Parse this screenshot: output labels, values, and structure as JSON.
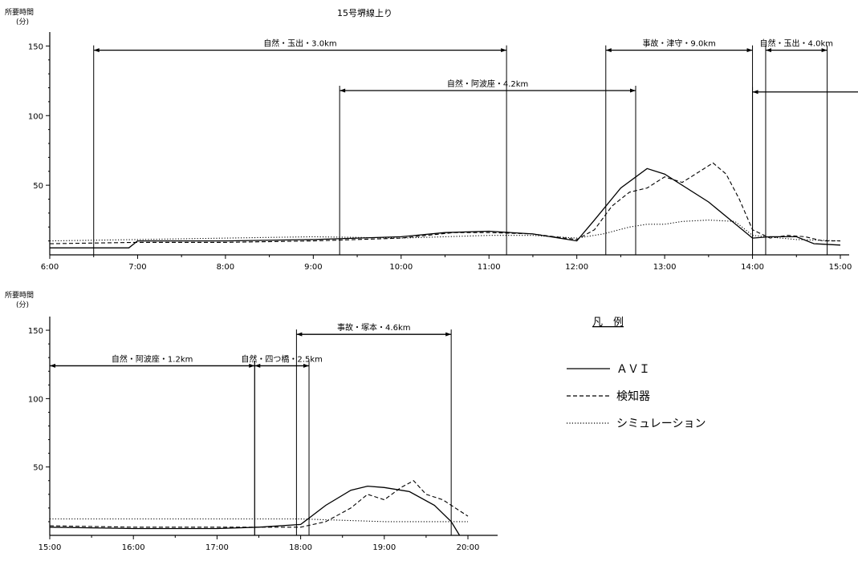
{
  "title": "15号堺線上り",
  "legend": {
    "title": "凡　例",
    "items": [
      {
        "label": "ＡＶＩ",
        "style": "solid"
      },
      {
        "label": "検知器",
        "style": "dashed"
      },
      {
        "label": "シミュレーション",
        "style": "dotted"
      }
    ]
  },
  "chart_data": [
    {
      "type": "line",
      "ylabel": "所要時間",
      "yunit": "(分)",
      "ylim": [
        0,
        160
      ],
      "yticks": [
        50,
        100,
        150
      ],
      "xlim": [
        6,
        15.2
      ],
      "xticks": [
        "6:00",
        "7:00",
        "8:00",
        "9:00",
        "10:00",
        "11:00",
        "12:00",
        "13:00",
        "14:00",
        "15:00"
      ],
      "intervals": [
        {
          "label": "自然・玉出・3.0km",
          "start": 6.5,
          "end": 11.2,
          "y": 147
        },
        {
          "label": "自然・阿波座・4.2km",
          "start": 9.3,
          "end": 12.67,
          "y": 118
        },
        {
          "label": "事故・津守・9.0km",
          "start": 12.33,
          "end": 14.0,
          "y": 147
        },
        {
          "label": "自然・玉出・4.0km",
          "start": 14.15,
          "end": 14.85,
          "y": 147
        },
        {
          "label": "",
          "start": 14.0,
          "end": 15.5,
          "y": 117
        }
      ],
      "series": [
        {
          "name": "ＡＶＩ",
          "style": "solid",
          "x": [
            6.0,
            6.9,
            7.0,
            8.0,
            9.0,
            10.0,
            10.5,
            11.0,
            11.5,
            12.0,
            12.2,
            12.5,
            12.8,
            13.0,
            13.5,
            14.0,
            14.2,
            14.5,
            14.7,
            15.0
          ],
          "y": [
            5,
            5,
            10,
            10,
            11,
            13,
            16,
            17,
            15,
            10,
            25,
            48,
            62,
            58,
            38,
            12,
            13,
            13,
            8,
            7
          ]
        },
        {
          "name": "検知器",
          "style": "dashed",
          "x": [
            6.0,
            7.0,
            8.0,
            9.0,
            10.0,
            10.6,
            11.0,
            11.5,
            12.0,
            12.2,
            12.4,
            12.6,
            12.8,
            13.0,
            13.2,
            13.4,
            13.55,
            13.7,
            13.85,
            14.0,
            14.2,
            14.4,
            14.6,
            14.8,
            15.0
          ],
          "y": [
            8,
            9,
            9,
            10,
            12,
            16,
            16,
            15,
            11,
            18,
            35,
            45,
            48,
            56,
            52,
            60,
            66,
            58,
            40,
            18,
            12,
            14,
            13,
            10,
            10
          ]
        },
        {
          "name": "シミュレーション",
          "style": "dotted",
          "x": [
            6.0,
            7.0,
            8.0,
            9.0,
            10.0,
            11.0,
            11.5,
            12.0,
            12.3,
            12.6,
            12.8,
            13.0,
            13.2,
            13.5,
            13.8,
            14.0,
            14.5,
            15.0
          ],
          "y": [
            10,
            11,
            12,
            13,
            12,
            14,
            14,
            12,
            15,
            20,
            22,
            22,
            24,
            25,
            24,
            14,
            11,
            10
          ]
        }
      ]
    },
    {
      "type": "line",
      "ylabel": "所要時間",
      "yunit": "(分)",
      "ylim": [
        0,
        160
      ],
      "yticks": [
        50,
        100,
        150
      ],
      "xlim": [
        15,
        20.5
      ],
      "xticks": [
        "15:00",
        "16:00",
        "17:00",
        "18:00",
        "19:00",
        "20:00"
      ],
      "intervals": [
        {
          "label": "自然・阿波座・1.2km",
          "start": 15.0,
          "end": 17.45,
          "y": 124
        },
        {
          "label": "自然・四つ橋・2.5km",
          "start": 17.45,
          "end": 18.1,
          "y": 124
        },
        {
          "label": "事故・塚本・4.6km",
          "start": 17.95,
          "end": 19.8,
          "y": 147
        }
      ],
      "series": [
        {
          "name": "ＡＶＩ",
          "style": "solid",
          "x": [
            15.0,
            16.0,
            17.0,
            17.5,
            18.0,
            18.3,
            18.6,
            18.8,
            19.0,
            19.3,
            19.6,
            19.8,
            19.9
          ],
          "y": [
            6,
            5,
            5,
            6,
            8,
            22,
            33,
            36,
            35,
            32,
            22,
            10,
            0
          ]
        },
        {
          "name": "検知器",
          "style": "dashed",
          "x": [
            15.0,
            16.0,
            17.0,
            18.0,
            18.3,
            18.6,
            18.8,
            19.0,
            19.2,
            19.35,
            19.5,
            19.7,
            19.85,
            20.0
          ],
          "y": [
            7,
            6,
            6,
            6,
            10,
            20,
            30,
            26,
            35,
            40,
            30,
            26,
            20,
            14
          ]
        },
        {
          "name": "シミュレーション",
          "style": "dotted",
          "x": [
            15.0,
            16.0,
            17.0,
            17.5,
            18.0,
            18.5,
            19.0,
            19.5,
            20.0
          ],
          "y": [
            12,
            12,
            12,
            12,
            12,
            11,
            10,
            10,
            10
          ]
        }
      ]
    }
  ]
}
